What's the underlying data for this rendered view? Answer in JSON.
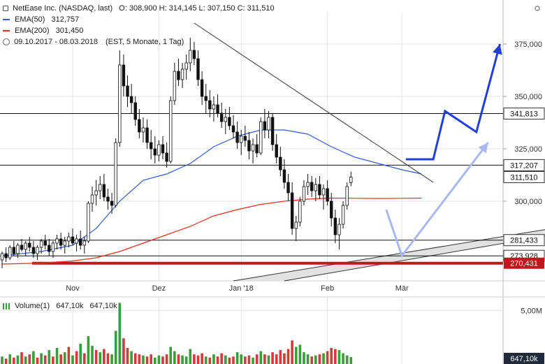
{
  "legend": {
    "title_line": "NetEase Inc. (NASDAQ, last)",
    "ohlc": "O: 308,900  H: 314,145  L: 307,150  C: 311,510",
    "ema50_label": "EMA(50)",
    "ema50_value": "312,757",
    "ema200_label": "EMA(200)",
    "ema200_value": "301,450",
    "range_text": "09.10.2017 - 08.03.2018",
    "period_text": "(EST, 5 Monate, 1 Tag)",
    "volume_label": "Volume(1)",
    "volume_v1": "647,10k",
    "volume_v2": "647,10k"
  },
  "colors": {
    "ema50": "#2f5bd9",
    "ema200": "#e0301e",
    "support_red": "#c0181a",
    "arrow_blue": "#1f3fd6",
    "arrow_light": "#aab8f2",
    "volume_green": "#3a9d3a",
    "volume_red": "#d33b3b",
    "price_badge": "#1f2b3a"
  },
  "chart_data": {
    "type": "candlestick",
    "ylim": [
      262000,
      390000
    ],
    "yticks": [
      {
        "value": 375000,
        "label": "375,000"
      },
      {
        "value": 350000,
        "label": "350,000"
      },
      {
        "value": 325000,
        "label": "325,000"
      },
      {
        "value": 300000,
        "label": "300,000"
      }
    ],
    "xticks": [
      {
        "day": 18,
        "label": "Nov"
      },
      {
        "day": 40,
        "label": "Dez"
      },
      {
        "day": 61,
        "label": "Jan '18"
      },
      {
        "day": 83,
        "label": "Feb"
      },
      {
        "day": 102,
        "label": "Mär"
      }
    ],
    "hlines": [
      {
        "value": 341813,
        "label": "341,813"
      },
      {
        "value": 317207,
        "label": "317,207"
      },
      {
        "value": 281433,
        "label": "281,433"
      },
      {
        "value": 273928,
        "label": "273,928"
      }
    ],
    "support_line": {
      "value": 270431,
      "label": "270,431"
    },
    "last_price": {
      "value": 311510,
      "label": "311,510"
    },
    "ema50_points": [
      [
        0,
        274000
      ],
      [
        10,
        276000
      ],
      [
        18,
        279000
      ],
      [
        24,
        287000
      ],
      [
        30,
        300000
      ],
      [
        36,
        310000
      ],
      [
        42,
        313000
      ],
      [
        48,
        318000
      ],
      [
        54,
        326000
      ],
      [
        60,
        331000
      ],
      [
        66,
        334000
      ],
      [
        72,
        334000
      ],
      [
        78,
        332000
      ],
      [
        84,
        326000
      ],
      [
        90,
        321000
      ],
      [
        96,
        318000
      ],
      [
        102,
        315000
      ],
      [
        107,
        313000
      ]
    ],
    "ema200_points": [
      [
        0,
        270000
      ],
      [
        10,
        270500
      ],
      [
        18,
        271500
      ],
      [
        24,
        273000
      ],
      [
        30,
        276000
      ],
      [
        36,
        280000
      ],
      [
        42,
        284000
      ],
      [
        48,
        288000
      ],
      [
        54,
        293000
      ],
      [
        60,
        296000
      ],
      [
        66,
        298500
      ],
      [
        72,
        300000
      ],
      [
        78,
        301000
      ],
      [
        84,
        301500
      ],
      [
        90,
        301400
      ],
      [
        96,
        301300
      ],
      [
        102,
        301400
      ],
      [
        107,
        301450
      ]
    ],
    "trendline_down": [
      [
        49,
        385000
      ],
      [
        110,
        309000
      ]
    ],
    "channel_upper": [
      [
        59,
        262000
      ],
      [
        150,
        290000
      ]
    ],
    "channel_lower": [
      [
        72,
        262000
      ],
      [
        150,
        287000
      ]
    ],
    "arrow_dark": [
      [
        103,
        320000
      ],
      [
        110,
        320000
      ],
      [
        113,
        343000
      ],
      [
        121,
        333000
      ],
      [
        127,
        375000
      ]
    ],
    "arrow_light": [
      [
        98,
        296000
      ],
      [
        102,
        274000
      ],
      [
        124,
        328000
      ]
    ],
    "candles": [
      [
        0,
        272000,
        276000,
        268000,
        275000
      ],
      [
        1,
        275000,
        278000,
        271000,
        273000
      ],
      [
        2,
        273000,
        279000,
        272000,
        278000
      ],
      [
        3,
        278000,
        281000,
        274000,
        275000
      ],
      [
        4,
        275000,
        280000,
        273000,
        279000
      ],
      [
        5,
        279000,
        282000,
        276000,
        277000
      ],
      [
        6,
        277000,
        281000,
        274000,
        280000
      ],
      [
        7,
        280000,
        283000,
        276000,
        278000
      ],
      [
        8,
        278000,
        281000,
        273000,
        275000
      ],
      [
        9,
        275000,
        279000,
        272000,
        278000
      ],
      [
        10,
        278000,
        282000,
        275000,
        281000
      ],
      [
        11,
        281000,
        284000,
        277000,
        279000
      ],
      [
        12,
        279000,
        282000,
        274000,
        276000
      ],
      [
        13,
        276000,
        281000,
        273000,
        280000
      ],
      [
        14,
        280000,
        284000,
        277000,
        282000
      ],
      [
        15,
        282000,
        285000,
        277000,
        279000
      ],
      [
        16,
        279000,
        283000,
        275000,
        281000
      ],
      [
        17,
        281000,
        285000,
        278000,
        283000
      ],
      [
        18,
        283000,
        287000,
        279000,
        280000
      ],
      [
        19,
        280000,
        284000,
        276000,
        282000
      ],
      [
        20,
        282000,
        286000,
        277000,
        279000
      ],
      [
        21,
        279000,
        283000,
        275000,
        281000
      ],
      [
        22,
        281000,
        300000,
        280000,
        299000
      ],
      [
        23,
        299000,
        307000,
        295000,
        303000
      ],
      [
        24,
        303000,
        310000,
        298000,
        305000
      ],
      [
        25,
        305000,
        312000,
        301000,
        308000
      ],
      [
        26,
        308000,
        313000,
        300000,
        302000
      ],
      [
        27,
        302000,
        306000,
        296000,
        300000
      ],
      [
        28,
        300000,
        304000,
        294000,
        298000
      ],
      [
        29,
        298000,
        330000,
        297000,
        328000
      ],
      [
        30,
        328000,
        372000,
        326000,
        365000
      ],
      [
        31,
        365000,
        370000,
        350000,
        355000
      ],
      [
        32,
        355000,
        360000,
        345000,
        350000
      ],
      [
        33,
        350000,
        356000,
        342000,
        347000
      ],
      [
        34,
        347000,
        350000,
        336000,
        339000
      ],
      [
        35,
        339000,
        344000,
        330000,
        333000
      ],
      [
        36,
        333000,
        340000,
        328000,
        335000
      ],
      [
        37,
        335000,
        339000,
        325000,
        328000
      ],
      [
        38,
        328000,
        334000,
        320000,
        325000
      ],
      [
        39,
        325000,
        331000,
        318000,
        322000
      ],
      [
        40,
        322000,
        329000,
        319000,
        327000
      ],
      [
        41,
        327000,
        331000,
        320000,
        323000
      ],
      [
        42,
        323000,
        328000,
        316000,
        319000
      ],
      [
        43,
        319000,
        350000,
        318000,
        348000
      ],
      [
        44,
        348000,
        366000,
        346000,
        362000
      ],
      [
        45,
        362000,
        368000,
        355000,
        358000
      ],
      [
        46,
        358000,
        366000,
        354000,
        363000
      ],
      [
        47,
        363000,
        370000,
        358000,
        366000
      ],
      [
        48,
        366000,
        378000,
        362000,
        372000
      ],
      [
        49,
        372000,
        376000,
        365000,
        368000
      ],
      [
        50,
        368000,
        372000,
        355000,
        358000
      ],
      [
        51,
        358000,
        362000,
        346000,
        350000
      ],
      [
        52,
        350000,
        356000,
        342000,
        348000
      ],
      [
        53,
        348000,
        353000,
        340000,
        344000
      ],
      [
        54,
        344000,
        350000,
        338000,
        346000
      ],
      [
        55,
        346000,
        351000,
        340000,
        342000
      ],
      [
        56,
        342000,
        347000,
        335000,
        338000
      ],
      [
        57,
        338000,
        344000,
        332000,
        340000
      ],
      [
        58,
        340000,
        345000,
        334000,
        336000
      ],
      [
        59,
        336000,
        341000,
        330000,
        333000
      ],
      [
        60,
        333000,
        338000,
        325000,
        328000
      ],
      [
        61,
        328000,
        334000,
        322000,
        331000
      ],
      [
        62,
        331000,
        336000,
        326000,
        329000
      ],
      [
        63,
        329000,
        333000,
        320000,
        324000
      ],
      [
        64,
        324000,
        330000,
        318000,
        327000
      ],
      [
        65,
        327000,
        332000,
        321000,
        323000
      ],
      [
        66,
        323000,
        340000,
        322000,
        338000
      ],
      [
        67,
        338000,
        344000,
        330000,
        334000
      ],
      [
        68,
        334000,
        343000,
        330000,
        340000
      ],
      [
        69,
        340000,
        342000,
        324000,
        327000
      ],
      [
        70,
        327000,
        332000,
        318000,
        321000
      ],
      [
        71,
        321000,
        326000,
        312000,
        315000
      ],
      [
        72,
        315000,
        320000,
        306000,
        309000
      ],
      [
        73,
        309000,
        313000,
        300000,
        304000
      ],
      [
        74,
        304000,
        309000,
        284000,
        287000
      ],
      [
        75,
        287000,
        293000,
        281000,
        290000
      ],
      [
        76,
        290000,
        302000,
        288000,
        300000
      ],
      [
        77,
        300000,
        310000,
        298000,
        307000
      ],
      [
        78,
        307000,
        313000,
        303000,
        309000
      ],
      [
        79,
        309000,
        312000,
        302000,
        305000
      ],
      [
        80,
        305000,
        311000,
        300000,
        308000
      ],
      [
        81,
        308000,
        312000,
        301000,
        303000
      ],
      [
        82,
        303000,
        308000,
        296000,
        306000
      ],
      [
        83,
        306000,
        310000,
        298000,
        300000
      ],
      [
        84,
        300000,
        304000,
        288000,
        292000
      ],
      [
        85,
        292000,
        296000,
        280000,
        284000
      ],
      [
        86,
        284000,
        292000,
        277000,
        289000
      ],
      [
        87,
        289000,
        300000,
        287000,
        298000
      ],
      [
        88,
        298000,
        309000,
        296000,
        307000
      ],
      [
        89,
        308900,
        314145,
        307150,
        311510
      ]
    ],
    "volume": {
      "ylim": [
        0,
        6000000
      ],
      "yticks": [
        {
          "value": 5000000,
          "label": "5,00M"
        }
      ],
      "last_label": "647,10k",
      "bars": [
        [
          0,
          700000,
          1
        ],
        [
          1,
          500000,
          0
        ],
        [
          2,
          900000,
          1
        ],
        [
          3,
          600000,
          0
        ],
        [
          4,
          800000,
          1
        ],
        [
          5,
          1100000,
          0
        ],
        [
          6,
          700000,
          1
        ],
        [
          7,
          900000,
          0
        ],
        [
          8,
          1200000,
          1
        ],
        [
          9,
          600000,
          0
        ],
        [
          10,
          1000000,
          1
        ],
        [
          11,
          800000,
          0
        ],
        [
          12,
          1300000,
          1
        ],
        [
          13,
          700000,
          0
        ],
        [
          14,
          1500000,
          1
        ],
        [
          15,
          900000,
          0
        ],
        [
          16,
          1100000,
          1
        ],
        [
          17,
          1600000,
          0
        ],
        [
          18,
          800000,
          1
        ],
        [
          19,
          1200000,
          0
        ],
        [
          20,
          1900000,
          1
        ],
        [
          21,
          1000000,
          0
        ],
        [
          22,
          2600000,
          1
        ],
        [
          23,
          1700000,
          1
        ],
        [
          24,
          1300000,
          0
        ],
        [
          25,
          1100000,
          1
        ],
        [
          26,
          1400000,
          0
        ],
        [
          27,
          1000000,
          0
        ],
        [
          28,
          900000,
          1
        ],
        [
          29,
          3100000,
          1
        ],
        [
          30,
          5700000,
          1
        ],
        [
          31,
          2400000,
          0
        ],
        [
          32,
          1500000,
          0
        ],
        [
          33,
          1200000,
          1
        ],
        [
          34,
          1000000,
          0
        ],
        [
          35,
          900000,
          0
        ],
        [
          36,
          800000,
          1
        ],
        [
          37,
          700000,
          0
        ],
        [
          38,
          900000,
          0
        ],
        [
          39,
          600000,
          1
        ],
        [
          40,
          800000,
          1
        ],
        [
          41,
          700000,
          0
        ],
        [
          42,
          900000,
          0
        ],
        [
          43,
          1600000,
          1
        ],
        [
          44,
          1200000,
          1
        ],
        [
          45,
          900000,
          0
        ],
        [
          46,
          800000,
          1
        ],
        [
          47,
          700000,
          1
        ],
        [
          48,
          1400000,
          1
        ],
        [
          49,
          900000,
          0
        ],
        [
          50,
          800000,
          0
        ],
        [
          51,
          1000000,
          0
        ],
        [
          52,
          700000,
          1
        ],
        [
          53,
          600000,
          0
        ],
        [
          54,
          900000,
          1
        ],
        [
          55,
          700000,
          0
        ],
        [
          56,
          1000000,
          0
        ],
        [
          57,
          800000,
          1
        ],
        [
          58,
          600000,
          0
        ],
        [
          59,
          700000,
          0
        ],
        [
          60,
          1100000,
          1
        ],
        [
          61,
          900000,
          1
        ],
        [
          62,
          700000,
          0
        ],
        [
          63,
          800000,
          0
        ],
        [
          64,
          600000,
          1
        ],
        [
          65,
          900000,
          0
        ],
        [
          66,
          1200000,
          1
        ],
        [
          67,
          900000,
          0
        ],
        [
          68,
          800000,
          1
        ],
        [
          69,
          1100000,
          0
        ],
        [
          70,
          900000,
          0
        ],
        [
          71,
          1300000,
          0
        ],
        [
          72,
          1000000,
          0
        ],
        [
          73,
          1400000,
          0
        ],
        [
          74,
          2200000,
          0
        ],
        [
          75,
          1600000,
          1
        ],
        [
          76,
          1800000,
          1
        ],
        [
          77,
          1100000,
          1
        ],
        [
          78,
          900000,
          1
        ],
        [
          79,
          700000,
          0
        ],
        [
          80,
          800000,
          1
        ],
        [
          81,
          900000,
          0
        ],
        [
          82,
          1000000,
          1
        ],
        [
          83,
          1200000,
          0
        ],
        [
          84,
          1500000,
          0
        ],
        [
          85,
          1400000,
          0
        ],
        [
          86,
          1300000,
          1
        ],
        [
          87,
          1000000,
          1
        ],
        [
          88,
          800000,
          1
        ],
        [
          89,
          647100,
          1
        ]
      ]
    }
  }
}
